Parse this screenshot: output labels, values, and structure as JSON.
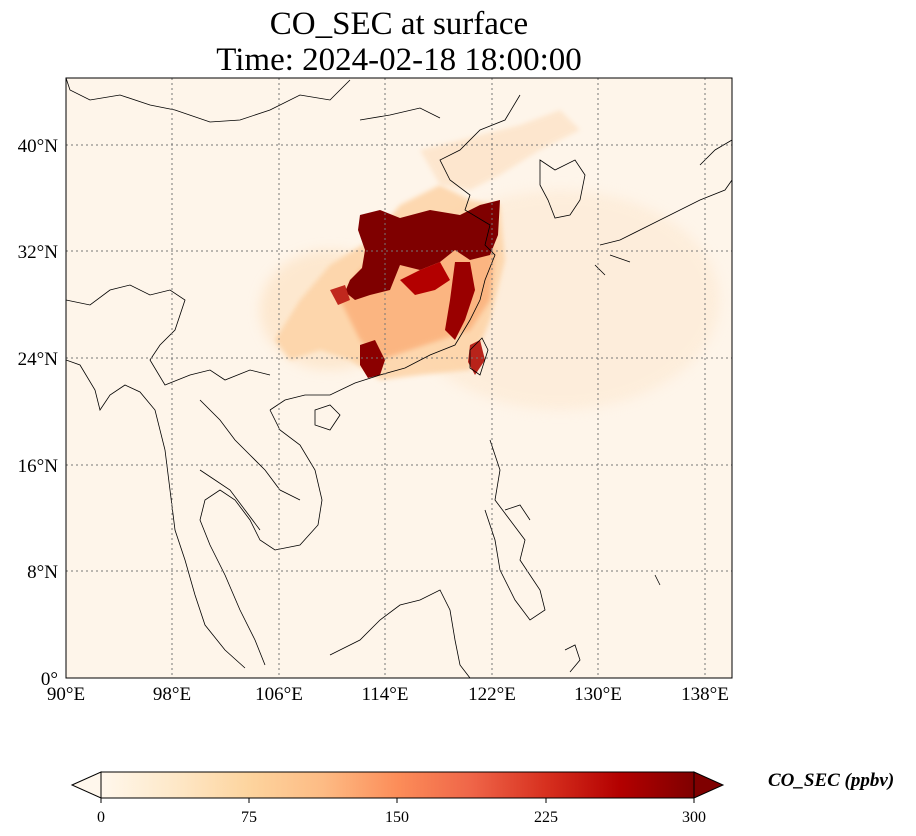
{
  "title": {
    "line1": "CO_SEC at surface",
    "line2": "Time: 2024-02-18 18:00:00"
  },
  "axes": {
    "lon_ticks": [
      "90°E",
      "98°E",
      "106°E",
      "114°E",
      "122°E",
      "130°E",
      "138°E"
    ],
    "lat_ticks": [
      "0°",
      "8°N",
      "16°N",
      "24°N",
      "32°N",
      "40°N"
    ],
    "lon_values": [
      90,
      98,
      106,
      114,
      122,
      130,
      138
    ],
    "lat_values": [
      0,
      8,
      16,
      24,
      32,
      40
    ],
    "lon_range": [
      90,
      140
    ],
    "lat_range": [
      0,
      45
    ],
    "gridlines": "dotted"
  },
  "colorbar": {
    "label": "CO_SEC (ppbv)",
    "ticks": [
      "0",
      "75",
      "150",
      "225",
      "300"
    ],
    "tick_values": [
      0,
      75,
      150,
      225,
      300
    ],
    "range": [
      0,
      300
    ],
    "extend": "both",
    "colormap": "OrRd",
    "colors": [
      "#fff7ec",
      "#fee8c8",
      "#fdd49e",
      "#fdbb84",
      "#fc8d59",
      "#ef6548",
      "#d7301f",
      "#b30000",
      "#7f0000"
    ]
  }
}
